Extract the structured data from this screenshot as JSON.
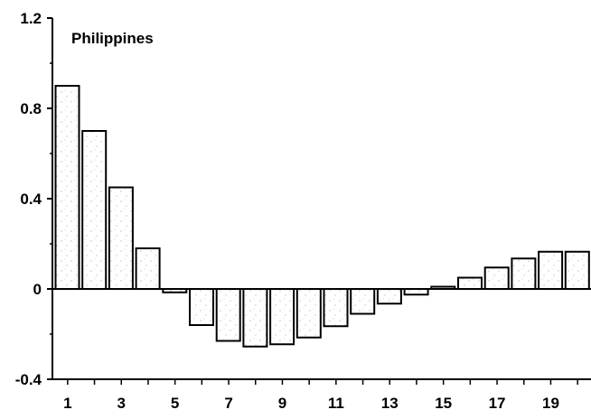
{
  "chart_data": {
    "type": "bar",
    "title": "Philippines",
    "xlabel": "",
    "ylabel": "",
    "ylim": [
      -0.4,
      1.2
    ],
    "yticks": [
      "-0.4",
      "0",
      "0.4",
      "0.8",
      "1.2"
    ],
    "xtick_labels": [
      "1",
      "3",
      "5",
      "7",
      "9",
      "11",
      "13",
      "15",
      "17",
      "19"
    ],
    "categories": [
      1,
      2,
      3,
      4,
      5,
      6,
      7,
      8,
      9,
      10,
      11,
      12,
      13,
      14,
      15,
      16,
      17,
      18,
      19,
      20
    ],
    "values": [
      0.9,
      0.7,
      0.45,
      0.18,
      -0.015,
      -0.16,
      -0.23,
      -0.255,
      -0.245,
      -0.215,
      -0.165,
      -0.11,
      -0.065,
      -0.025,
      0.01,
      0.05,
      0.095,
      0.135,
      0.165,
      0.165
    ],
    "grid": false,
    "bar_fill": "#ffffff",
    "bar_stroke": "#000000"
  }
}
